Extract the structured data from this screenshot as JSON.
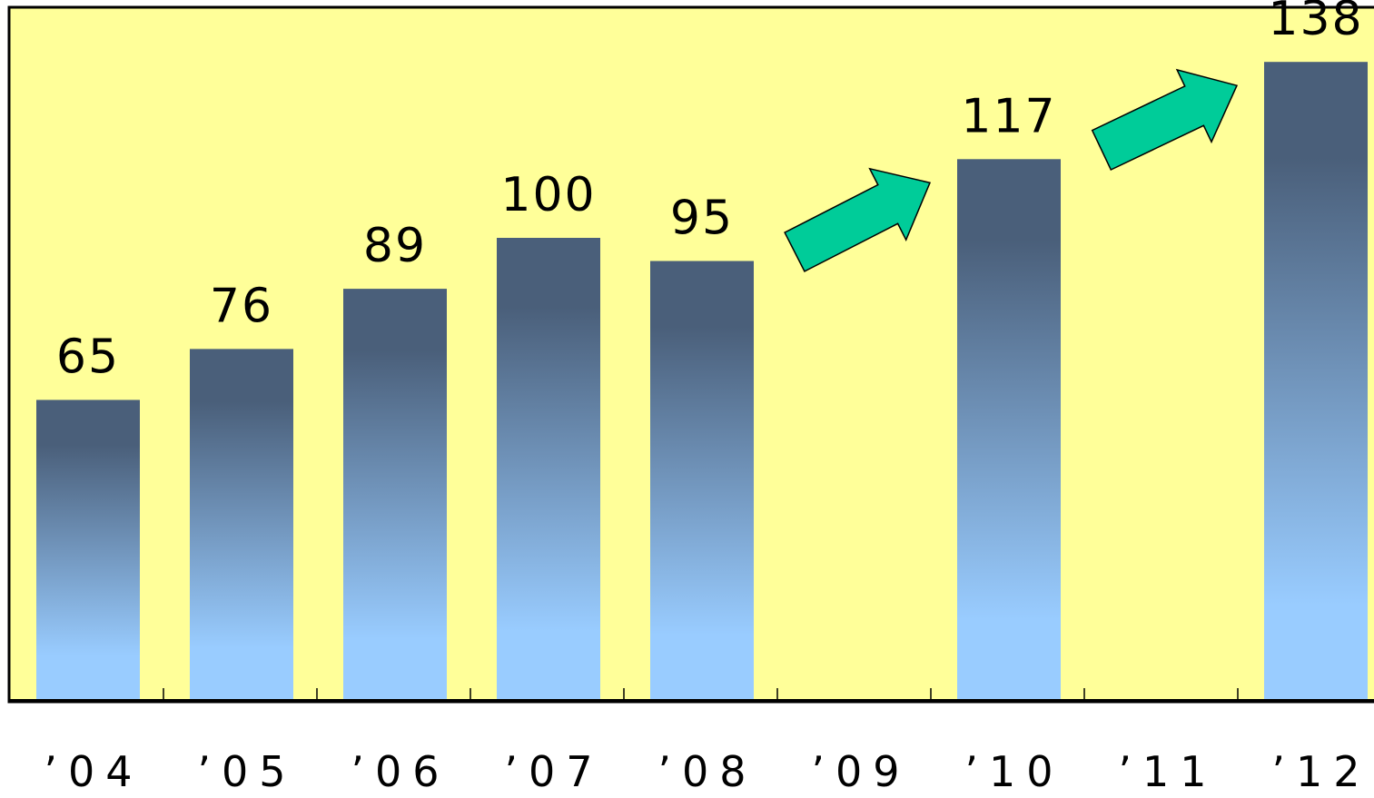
{
  "colors": {
    "plot_background": "#FFFF99",
    "bar_top": "#4A5F7A",
    "bar_bottom": "#99CCFF",
    "arrow_fill": "#00CC99",
    "axis": "#000000"
  },
  "chart_data": {
    "type": "bar",
    "categories": [
      "’04",
      "’05",
      "’06",
      "’07",
      "’08",
      "’09",
      "’10",
      "’11",
      "’12"
    ],
    "values": [
      65,
      76,
      89,
      100,
      95,
      null,
      117,
      null,
      138
    ],
    "data_labels": [
      "65",
      "76",
      "89",
      "100",
      "95",
      "",
      "117",
      "",
      "138"
    ],
    "title": "",
    "xlabel": "",
    "ylabel": "",
    "ylim": [
      0,
      145
    ],
    "grid": false,
    "legend": "none",
    "annotations": [
      {
        "type": "arrow",
        "from": "’08",
        "to": "’10"
      },
      {
        "type": "arrow",
        "from": "’10",
        "to": "’12"
      }
    ]
  }
}
